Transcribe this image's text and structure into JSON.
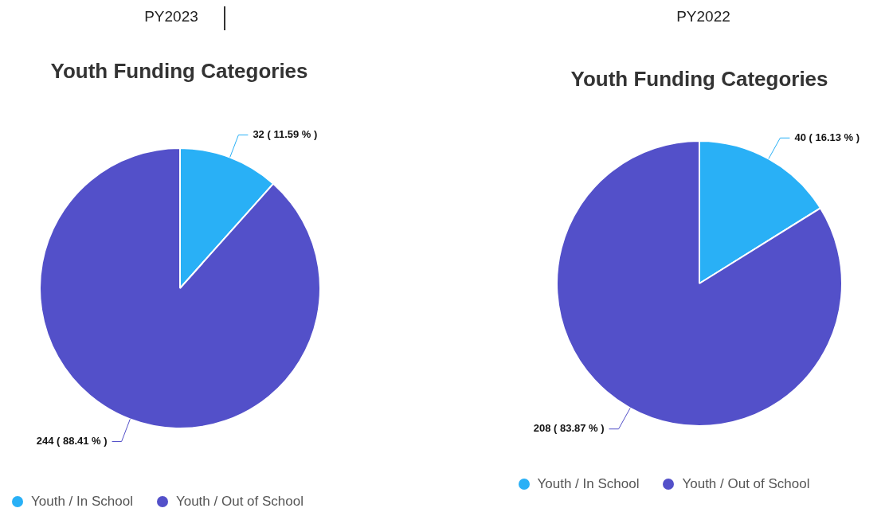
{
  "chart_data": [
    {
      "type": "pie",
      "subtitle": "PY2023",
      "title": "Youth Funding Categories",
      "categories": [
        "Youth / In School",
        "Youth / Out of School"
      ],
      "values": [
        32,
        244
      ],
      "colors": [
        "#29b0f6",
        "#5350c9"
      ],
      "value_labels": [
        "32 ( 11.59 % )",
        "244 ( 88.41 % )"
      ],
      "legend": "bottom"
    },
    {
      "type": "pie",
      "subtitle": "PY2022",
      "title": "Youth Funding Categories",
      "categories": [
        "Youth / In School",
        "Youth / Out of School"
      ],
      "values": [
        40,
        208
      ],
      "colors": [
        "#29b0f6",
        "#5350c9"
      ],
      "value_labels": [
        "40 ( 16.13 % )",
        "208 ( 83.87 % )"
      ],
      "legend": "bottom"
    }
  ]
}
